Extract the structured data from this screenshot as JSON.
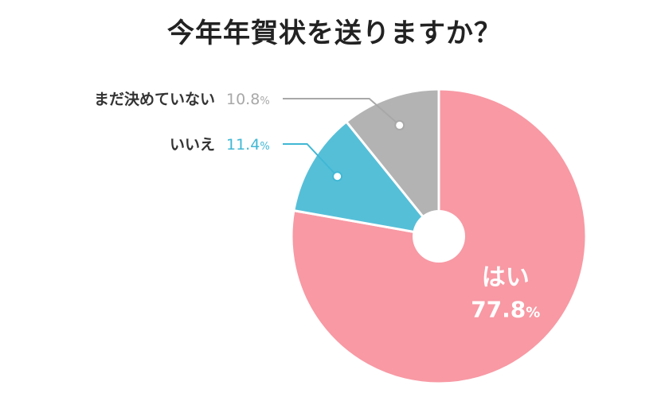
{
  "chart_data": {
    "type": "pie",
    "title": "今年年賀状を送りますか？",
    "hole": true,
    "slices": [
      {
        "label": "はい",
        "value": 77.8,
        "value_text": "77.8",
        "unit": "%",
        "color": "#F899A4",
        "label_position": "inside"
      },
      {
        "label": "いいえ",
        "value": 11.4,
        "value_text": "11.4",
        "unit": "%",
        "color": "#56BFD8",
        "label_position": "outside"
      },
      {
        "label": "まだ決めていない",
        "value": 10.8,
        "value_text": "10.8",
        "unit": "%",
        "color": "#B3B3B3",
        "label_position": "outside"
      }
    ],
    "outside_label_colors": {
      "name": "#333333",
      "いいえ": "#40B8D5",
      "まだ決めていない": "#A8A8A8"
    },
    "inside_label_color": "#FFFFFF"
  }
}
